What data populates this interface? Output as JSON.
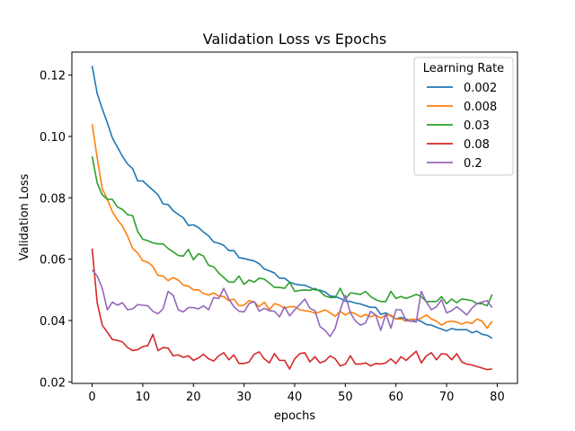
{
  "chart_data": {
    "type": "line",
    "title": "Validation Loss vs Epochs",
    "xlabel": "epochs",
    "ylabel": "Validation Loss",
    "xlim": [
      -4,
      84
    ],
    "ylim": [
      0.0195,
      0.1275
    ],
    "xticks": [
      0,
      10,
      20,
      30,
      40,
      50,
      60,
      70,
      80
    ],
    "yticks": [
      0.02,
      0.04,
      0.06,
      0.08,
      0.1,
      0.12
    ],
    "ytick_labels": [
      "0.02",
      "0.04",
      "0.06",
      "0.08",
      "0.10",
      "0.12"
    ],
    "grid": false,
    "legend": {
      "title": "Learning Rate",
      "placement": "top-right"
    },
    "x": [
      0,
      1,
      2,
      3,
      4,
      5,
      6,
      7,
      8,
      9,
      10,
      11,
      12,
      13,
      14,
      15,
      16,
      17,
      18,
      19,
      20,
      21,
      22,
      23,
      24,
      25,
      26,
      27,
      28,
      29,
      30,
      31,
      32,
      33,
      34,
      35,
      36,
      37,
      38,
      39,
      40,
      41,
      42,
      43,
      44,
      45,
      46,
      47,
      48,
      49,
      50,
      51,
      52,
      53,
      54,
      55,
      56,
      57,
      58,
      59,
      60,
      61,
      62,
      63,
      64,
      65,
      66,
      67,
      68,
      69,
      70,
      71,
      72,
      73,
      74,
      75,
      76,
      77,
      78,
      79
    ],
    "series": [
      {
        "name": "0.002",
        "color": "#1f77b4",
        "values": [
          0.123,
          0.114,
          0.109,
          0.1045,
          0.0995,
          0.0965,
          0.0935,
          0.091,
          0.0895,
          0.0855,
          0.0855,
          0.084,
          0.0825,
          0.081,
          0.078,
          0.0778,
          0.0758,
          0.0746,
          0.0735,
          0.071,
          0.0712,
          0.0703,
          0.0688,
          0.0676,
          0.0656,
          0.0652,
          0.0645,
          0.0628,
          0.0628,
          0.0605,
          0.0602,
          0.0598,
          0.0594,
          0.0585,
          0.0568,
          0.0562,
          0.0555,
          0.0538,
          0.0538,
          0.0525,
          0.0519,
          0.0516,
          0.0515,
          0.0508,
          0.05,
          0.0499,
          0.0493,
          0.048,
          0.0478,
          0.0472,
          0.0463,
          0.0462,
          0.0457,
          0.0454,
          0.0448,
          0.0443,
          0.0443,
          0.042,
          0.0425,
          0.0415,
          0.0405,
          0.041,
          0.0405,
          0.0397,
          0.0403,
          0.0397,
          0.0387,
          0.0385,
          0.0378,
          0.0372,
          0.0366,
          0.0374,
          0.037,
          0.037,
          0.037,
          0.036,
          0.0365,
          0.0355,
          0.0352,
          0.0342
        ]
      },
      {
        "name": "0.008",
        "color": "#ff7f0e",
        "values": [
          0.104,
          0.093,
          0.083,
          0.0795,
          0.0755,
          0.0728,
          0.0708,
          0.0675,
          0.0635,
          0.062,
          0.0595,
          0.059,
          0.0576,
          0.0547,
          0.0545,
          0.053,
          0.054,
          0.0532,
          0.0515,
          0.0512,
          0.05,
          0.05,
          0.0488,
          0.0483,
          0.049,
          0.048,
          0.0478,
          0.0465,
          0.047,
          0.0448,
          0.045,
          0.0465,
          0.046,
          0.0445,
          0.046,
          0.0435,
          0.0455,
          0.045,
          0.044,
          0.0445,
          0.0445,
          0.0435,
          0.0432,
          0.043,
          0.0424,
          0.0428,
          0.0435,
          0.0425,
          0.0414,
          0.043,
          0.0418,
          0.0428,
          0.0422,
          0.0412,
          0.042,
          0.0412,
          0.0418,
          0.0408,
          0.0418,
          0.0418,
          0.0405,
          0.0405,
          0.0398,
          0.0405,
          0.0402,
          0.0408,
          0.0418,
          0.0405,
          0.0398,
          0.0385,
          0.0395,
          0.0398,
          0.0395,
          0.0388,
          0.0395,
          0.039,
          0.0405,
          0.0398,
          0.0375,
          0.0398
        ]
      },
      {
        "name": "0.03",
        "color": "#2ca02c",
        "values": [
          0.0935,
          0.0848,
          0.081,
          0.0795,
          0.0795,
          0.077,
          0.0762,
          0.0745,
          0.0742,
          0.069,
          0.0665,
          0.066,
          0.0653,
          0.065,
          0.065,
          0.0635,
          0.0624,
          0.0612,
          0.061,
          0.0632,
          0.0598,
          0.0618,
          0.061,
          0.058,
          0.0575,
          0.0555,
          0.054,
          0.0525,
          0.0525,
          0.0545,
          0.0518,
          0.0532,
          0.0525,
          0.0538,
          0.0535,
          0.0522,
          0.0508,
          0.0508,
          0.0505,
          0.0525,
          0.0495,
          0.0498,
          0.05,
          0.0498,
          0.0505,
          0.0495,
          0.048,
          0.0475,
          0.0475,
          0.0505,
          0.047,
          0.049,
          0.0488,
          0.0485,
          0.0495,
          0.0478,
          0.0468,
          0.0462,
          0.0462,
          0.0495,
          0.0472,
          0.0478,
          0.0472,
          0.0478,
          0.0485,
          0.0478,
          0.0462,
          0.0462,
          0.0462,
          0.0478,
          0.0455,
          0.047,
          0.0458,
          0.047,
          0.0468,
          0.0465,
          0.0455,
          0.0455,
          0.0448,
          0.0485
        ]
      },
      {
        "name": "0.08",
        "color": "#d62728",
        "values": [
          0.0635,
          0.0458,
          0.0385,
          0.0362,
          0.0338,
          0.0335,
          0.033,
          0.0312,
          0.0302,
          0.0305,
          0.0315,
          0.0318,
          0.0355,
          0.0302,
          0.0312,
          0.031,
          0.0285,
          0.0288,
          0.028,
          0.0285,
          0.027,
          0.0278,
          0.029,
          0.0275,
          0.0268,
          0.0285,
          0.0295,
          0.0272,
          0.0288,
          0.026,
          0.026,
          0.0265,
          0.029,
          0.0298,
          0.0275,
          0.0262,
          0.0292,
          0.027,
          0.027,
          0.0242,
          0.0275,
          0.0292,
          0.0295,
          0.0265,
          0.0282,
          0.0262,
          0.0268,
          0.0285,
          0.0275,
          0.0252,
          0.0258,
          0.0285,
          0.0258,
          0.0258,
          0.0262,
          0.0252,
          0.026,
          0.0258,
          0.0262,
          0.0275,
          0.026,
          0.0282,
          0.027,
          0.0285,
          0.03,
          0.0262,
          0.0285,
          0.0295,
          0.0272,
          0.0292,
          0.029,
          0.0272,
          0.0292,
          0.0265,
          0.0258,
          0.0255,
          0.025,
          0.0245,
          0.024,
          0.0242
        ]
      },
      {
        "name": "0.2",
        "color": "#9467bd",
        "values": [
          0.0565,
          0.0545,
          0.0505,
          0.0435,
          0.046,
          0.045,
          0.0458,
          0.0435,
          0.0438,
          0.0452,
          0.045,
          0.0448,
          0.043,
          0.0422,
          0.0438,
          0.0495,
          0.0482,
          0.0435,
          0.0428,
          0.0442,
          0.0442,
          0.0438,
          0.0448,
          0.0435,
          0.0475,
          0.0472,
          0.0505,
          0.047,
          0.0445,
          0.043,
          0.0428,
          0.0455,
          0.0462,
          0.043,
          0.044,
          0.0432,
          0.043,
          0.0412,
          0.0445,
          0.0415,
          0.0435,
          0.0452,
          0.047,
          0.044,
          0.0432,
          0.038,
          0.0368,
          0.0348,
          0.0375,
          0.0435,
          0.0482,
          0.0425,
          0.0398,
          0.0385,
          0.0392,
          0.043,
          0.0418,
          0.0368,
          0.0422,
          0.0375,
          0.0435,
          0.0435,
          0.04,
          0.0398,
          0.0395,
          0.0495,
          0.046,
          0.0435,
          0.0445,
          0.0468,
          0.0425,
          0.0432,
          0.0445,
          0.0432,
          0.0418,
          0.044,
          0.0455,
          0.046,
          0.0465,
          0.0442
        ]
      }
    ]
  }
}
